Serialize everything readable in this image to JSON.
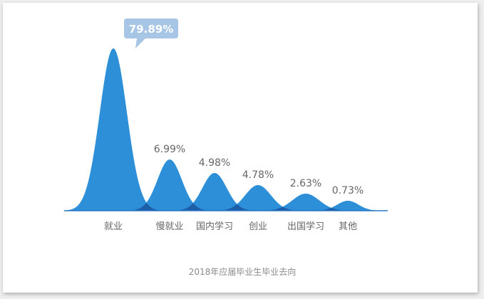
{
  "chart_data": {
    "type": "area",
    "title": "",
    "caption": "2018年应届毕业生毕业去向",
    "categories": [
      "就业",
      "慢就业",
      "国内学习",
      "创业",
      "出国学习",
      "其他"
    ],
    "values": [
      79.89,
      6.99,
      4.98,
      4.78,
      2.63,
      0.73
    ],
    "value_labels": [
      "79.89%",
      "6.99%",
      "4.98%",
      "4.78%",
      "2.63%",
      "0.73%"
    ],
    "highlight_index": 0,
    "grid": false,
    "legend": "none",
    "colors": {
      "fill": "#2d8fd8",
      "overlap": "#1c5fa8",
      "callout": "#a7c6e6",
      "baseline": "#2a79c4"
    }
  }
}
